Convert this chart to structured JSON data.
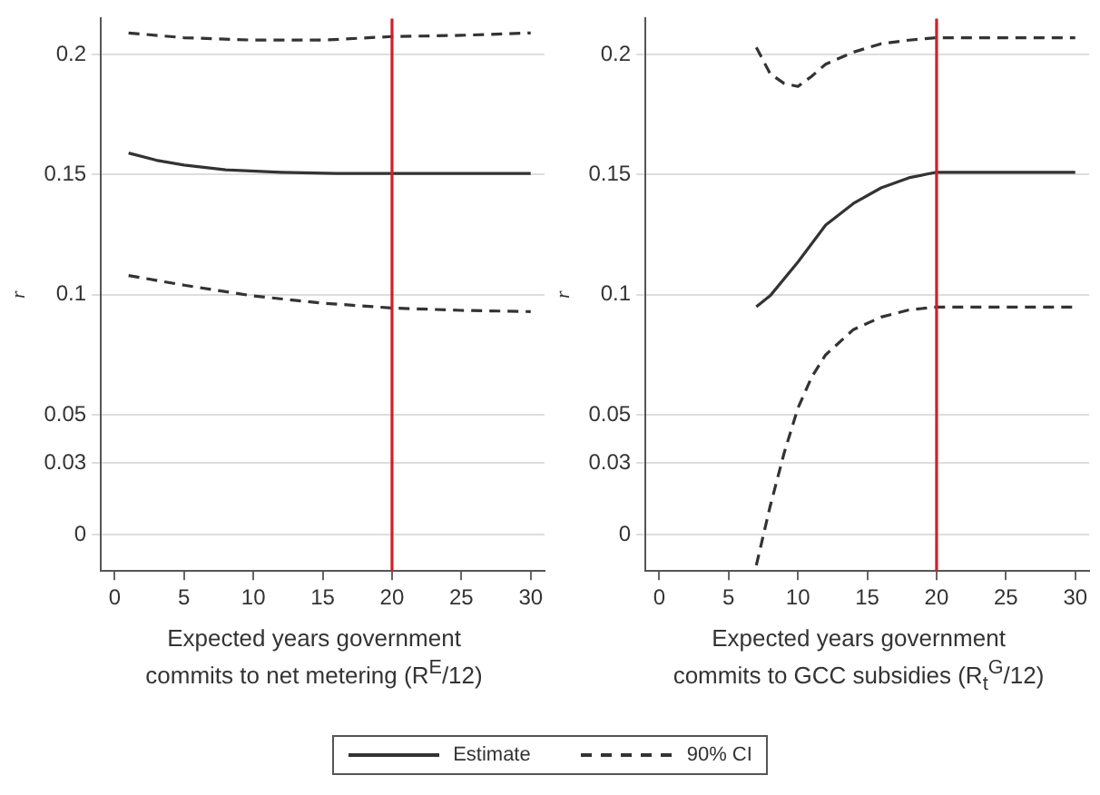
{
  "chart_data": [
    {
      "type": "line",
      "xlabel": "Expected years government commits to net metering (R$^{E}$/12)",
      "ylabel": "r",
      "xlim": [
        -1,
        31
      ],
      "xticks": [
        0,
        5,
        10,
        15,
        20,
        25,
        30
      ],
      "ylim": [
        -0.015,
        0.215
      ],
      "yticks": [
        0,
        0.03,
        0.05,
        0.1,
        0.15,
        0.2
      ],
      "grid": "y",
      "legend": "bottom",
      "ref_lines": [
        {
          "axis": "x",
          "value": 20,
          "color": "#d0202a"
        }
      ],
      "series": [
        {
          "name": "Estimate",
          "color": "#333333",
          "line_style": "solid",
          "x": [
            1,
            3,
            5,
            8,
            12,
            16,
            20,
            25,
            30
          ],
          "values": [
            0.159,
            0.156,
            0.154,
            0.152,
            0.151,
            0.1505,
            0.1505,
            0.1505,
            0.1505
          ]
        },
        {
          "name": "90% CI",
          "color": "#333333",
          "line_style": "dashed",
          "x": [
            1,
            5,
            10,
            15,
            20,
            25,
            30
          ],
          "values": [
            0.209,
            0.207,
            0.206,
            0.206,
            0.2075,
            0.208,
            0.209
          ]
        },
        {
          "color": "#333333",
          "line_style": "dashed",
          "x": [
            1,
            5,
            10,
            15,
            20,
            25,
            30
          ],
          "values": [
            0.108,
            0.104,
            0.0995,
            0.0965,
            0.0945,
            0.0935,
            0.093
          ]
        }
      ]
    },
    {
      "type": "line",
      "xlabel": "Expected years government commits to GCC subsidies (R$_{t}$$^{G}$/12)",
      "ylabel": "r",
      "xlim": [
        -1,
        31
      ],
      "xticks": [
        0,
        5,
        10,
        15,
        20,
        25,
        30
      ],
      "ylim": [
        -0.015,
        0.215
      ],
      "yticks": [
        0,
        0.03,
        0.05,
        0.1,
        0.15,
        0.2
      ],
      "grid": "y",
      "ref_lines": [
        {
          "axis": "x",
          "value": 20,
          "color": "#d0202a"
        }
      ],
      "series": [
        {
          "color": "#333333",
          "line_style": "solid",
          "x": [
            7,
            8,
            10,
            12,
            14,
            16,
            18,
            20,
            25,
            30
          ],
          "values": [
            0.095,
            0.0996,
            0.1136,
            0.129,
            0.138,
            0.1445,
            0.1487,
            0.151,
            0.151,
            0.151
          ]
        },
        {
          "color": "#333333",
          "line_style": "dashed",
          "x": [
            7,
            8,
            9,
            10,
            11,
            12,
            14,
            16,
            18,
            20,
            25,
            30
          ],
          "values": [
            0.203,
            0.192,
            0.188,
            0.1867,
            0.191,
            0.196,
            0.201,
            0.2045,
            0.206,
            0.207,
            0.207,
            0.207
          ]
        },
        {
          "color": "#333333",
          "line_style": "dashed",
          "x": [
            7,
            8,
            9,
            10,
            11,
            12,
            14,
            16,
            18,
            20,
            25,
            30
          ],
          "values": [
            -0.0126,
            0.012,
            0.034,
            0.0528,
            0.0658,
            0.075,
            0.0855,
            0.0907,
            0.0937,
            0.0949,
            0.0949,
            0.0949
          ]
        }
      ]
    }
  ]
}
